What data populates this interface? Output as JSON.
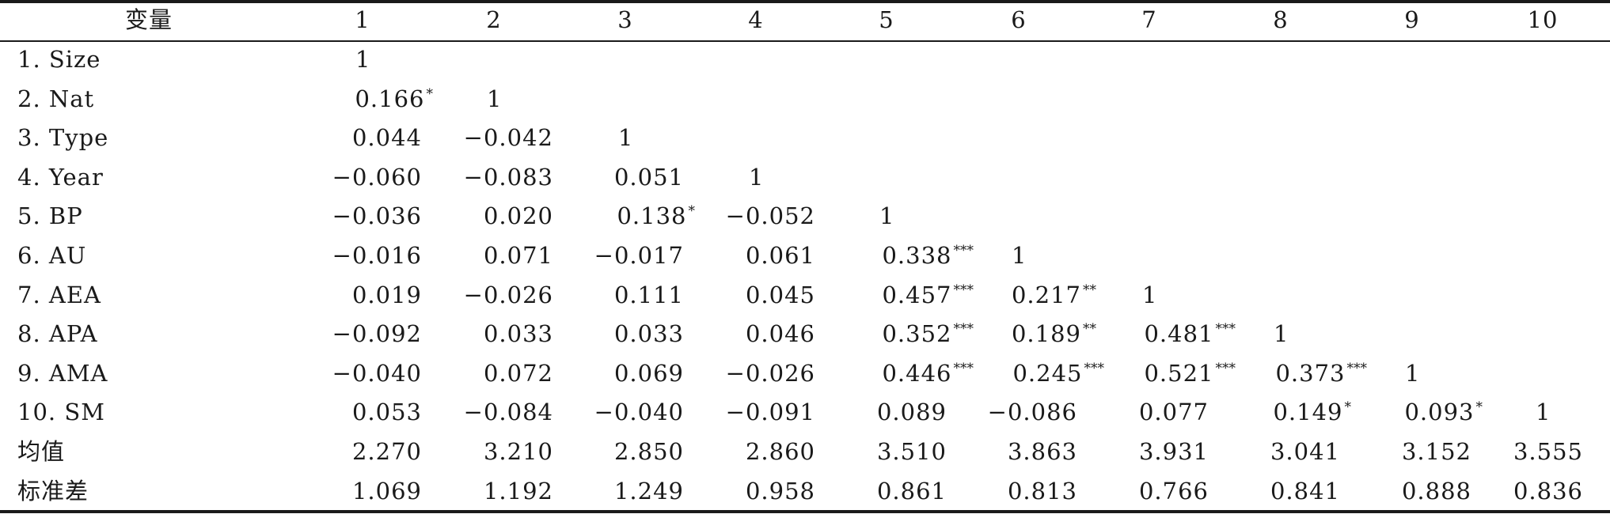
{
  "table": {
    "headers": [
      "变量",
      "1",
      "2",
      "3",
      "4",
      "5",
      "6",
      "7",
      "8",
      "9",
      "10"
    ],
    "rows": [
      {
        "label": "1. Size",
        "cells": [
          {
            "v": "1",
            "s": ""
          }
        ]
      },
      {
        "label": "2. Nat",
        "cells": [
          {
            "v": "0.166",
            "s": "*"
          },
          {
            "v": "1",
            "s": ""
          }
        ]
      },
      {
        "label": "3. Type",
        "cells": [
          {
            "v": "0.044",
            "s": ""
          },
          {
            "v": "−0.042",
            "s": ""
          },
          {
            "v": "1",
            "s": ""
          }
        ]
      },
      {
        "label": "4. Year",
        "cells": [
          {
            "v": "−0.060",
            "s": ""
          },
          {
            "v": "−0.083",
            "s": ""
          },
          {
            "v": "0.051",
            "s": ""
          },
          {
            "v": "1",
            "s": ""
          }
        ]
      },
      {
        "label": "5. BP",
        "cells": [
          {
            "v": "−0.036",
            "s": ""
          },
          {
            "v": "0.020",
            "s": ""
          },
          {
            "v": "0.138",
            "s": "*"
          },
          {
            "v": "−0.052",
            "s": ""
          },
          {
            "v": "1",
            "s": ""
          }
        ]
      },
      {
        "label": "6. AU",
        "cells": [
          {
            "v": "−0.016",
            "s": ""
          },
          {
            "v": "0.071",
            "s": ""
          },
          {
            "v": "−0.017",
            "s": ""
          },
          {
            "v": "0.061",
            "s": ""
          },
          {
            "v": "0.338",
            "s": "***"
          },
          {
            "v": "1",
            "s": ""
          }
        ]
      },
      {
        "label": "7. AEA",
        "cells": [
          {
            "v": "0.019",
            "s": ""
          },
          {
            "v": "−0.026",
            "s": ""
          },
          {
            "v": "0.111",
            "s": ""
          },
          {
            "v": "0.045",
            "s": ""
          },
          {
            "v": "0.457",
            "s": "***"
          },
          {
            "v": "0.217",
            "s": "**"
          },
          {
            "v": "1",
            "s": ""
          }
        ]
      },
      {
        "label": "8. APA",
        "cells": [
          {
            "v": "−0.092",
            "s": ""
          },
          {
            "v": "0.033",
            "s": ""
          },
          {
            "v": "0.033",
            "s": ""
          },
          {
            "v": "0.046",
            "s": ""
          },
          {
            "v": "0.352",
            "s": "***"
          },
          {
            "v": "0.189",
            "s": "**"
          },
          {
            "v": "0.481",
            "s": "***"
          },
          {
            "v": "1",
            "s": ""
          }
        ]
      },
      {
        "label": "9. AMA",
        "cells": [
          {
            "v": "−0.040",
            "s": ""
          },
          {
            "v": "0.072",
            "s": ""
          },
          {
            "v": "0.069",
            "s": ""
          },
          {
            "v": "−0.026",
            "s": ""
          },
          {
            "v": "0.446",
            "s": "***"
          },
          {
            "v": "0.245",
            "s": "***"
          },
          {
            "v": "0.521",
            "s": "***"
          },
          {
            "v": "0.373",
            "s": "***"
          },
          {
            "v": "1",
            "s": ""
          }
        ]
      },
      {
        "label": "10. SM",
        "cells": [
          {
            "v": "0.053",
            "s": ""
          },
          {
            "v": "−0.084",
            "s": ""
          },
          {
            "v": "−0.040",
            "s": ""
          },
          {
            "v": "−0.091",
            "s": ""
          },
          {
            "v": "0.089",
            "s": ""
          },
          {
            "v": "−0.086",
            "s": ""
          },
          {
            "v": "0.077",
            "s": ""
          },
          {
            "v": "0.149",
            "s": "*"
          },
          {
            "v": "0.093",
            "s": "*"
          },
          {
            "v": "1",
            "s": ""
          }
        ]
      },
      {
        "label": "均值",
        "cells": [
          {
            "v": "2.270",
            "s": ""
          },
          {
            "v": "3.210",
            "s": ""
          },
          {
            "v": "2.850",
            "s": ""
          },
          {
            "v": "2.860",
            "s": ""
          },
          {
            "v": "3.510",
            "s": ""
          },
          {
            "v": "3.863",
            "s": ""
          },
          {
            "v": "3.931",
            "s": ""
          },
          {
            "v": "3.041",
            "s": ""
          },
          {
            "v": "3.152",
            "s": ""
          },
          {
            "v": "3.555",
            "s": ""
          }
        ]
      },
      {
        "label": "标准差",
        "cells": [
          {
            "v": "1.069",
            "s": ""
          },
          {
            "v": "1.192",
            "s": ""
          },
          {
            "v": "1.249",
            "s": ""
          },
          {
            "v": "0.958",
            "s": ""
          },
          {
            "v": "0.861",
            "s": ""
          },
          {
            "v": "0.813",
            "s": ""
          },
          {
            "v": "0.766",
            "s": ""
          },
          {
            "v": "0.841",
            "s": ""
          },
          {
            "v": "0.888",
            "s": ""
          },
          {
            "v": "0.836",
            "s": ""
          }
        ]
      }
    ]
  }
}
